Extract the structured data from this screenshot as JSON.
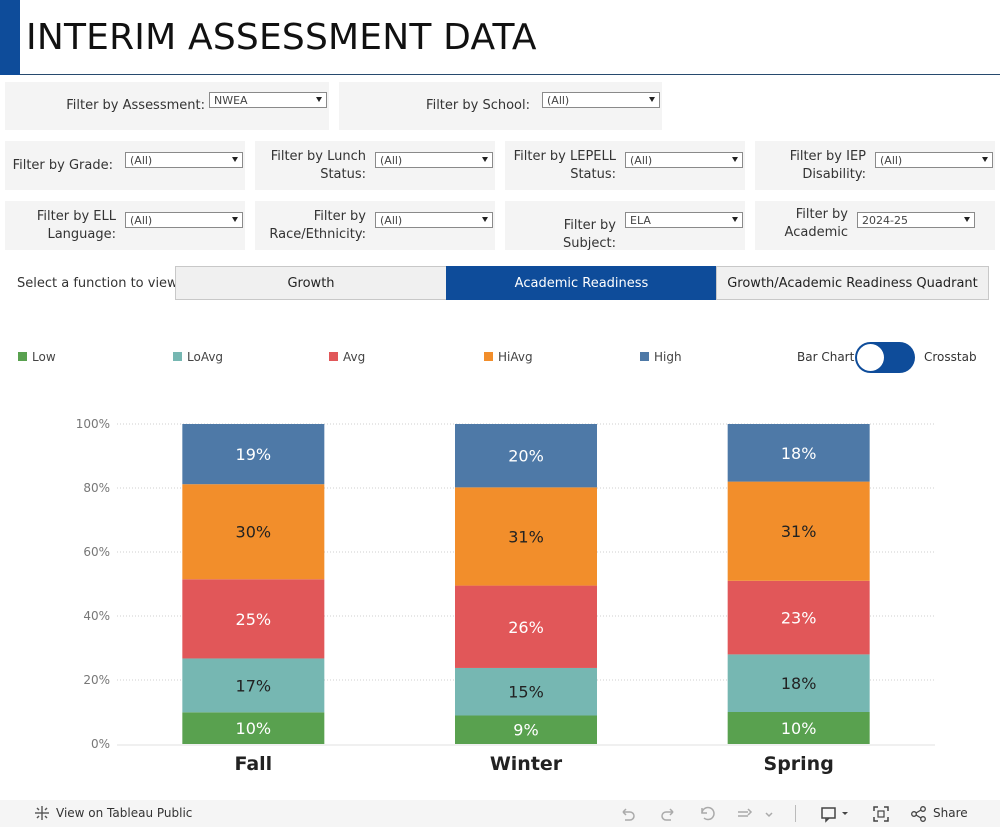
{
  "header": {
    "title": "INTERIM ASSESSMENT DATA"
  },
  "filters": {
    "assessment": {
      "label": "Filter by Assessment:",
      "value": "NWEA"
    },
    "school": {
      "label": "Filter by School:",
      "value": "(All)"
    },
    "grade": {
      "label": "Filter by Grade:",
      "value": "(All)"
    },
    "lunch": {
      "label_line1": "Filter by Lunch",
      "label_line2": "Status:",
      "value": "(All)"
    },
    "lepell": {
      "label_line1": "Filter by LEPELL",
      "label_line2": "Status:",
      "value": "(All)"
    },
    "iep": {
      "label_line1": "Filter by IEP",
      "label_line2": "Disability:",
      "value": "(All)"
    },
    "ell": {
      "label_line1": "Filter by ELL",
      "label_line2": "Language:",
      "value": "(All)"
    },
    "race": {
      "label_line1": "Filter by",
      "label_line2": "Race/Ethnicity:",
      "value": "(All)"
    },
    "subject": {
      "label": "Filter by Subject:",
      "value": "ELA"
    },
    "academic": {
      "label_line1": "Filter by",
      "label_line2": "Academic",
      "value": "2024-25"
    }
  },
  "function_select": {
    "label": "Select a function to view:",
    "tabs": [
      "Growth",
      "Academic Readiness",
      "Growth/Academic Readiness Quadrant"
    ],
    "active": "Academic Readiness"
  },
  "legend": [
    {
      "label": "Low",
      "color": "#59a14f"
    },
    {
      "label": "LoAvg",
      "color": "#76b7b2"
    },
    {
      "label": "Avg",
      "color": "#e15759"
    },
    {
      "label": "HiAvg",
      "color": "#f28e2b"
    },
    {
      "label": "High",
      "color": "#4e79a7"
    }
  ],
  "view_toggle": {
    "left": "Bar Chart",
    "right": "Crosstab",
    "selected": "Bar Chart"
  },
  "chart_data": {
    "type": "bar",
    "stacked": true,
    "categories": [
      "Fall",
      "Winter",
      "Spring"
    ],
    "series": [
      {
        "name": "Low",
        "color": "#59a14f",
        "values": [
          10,
          9,
          10
        ],
        "labels": [
          "10%",
          "9%",
          "10%"
        ]
      },
      {
        "name": "LoAvg",
        "color": "#76b7b2",
        "values": [
          17,
          15,
          18
        ],
        "labels": [
          "17%",
          "15%",
          "18%"
        ]
      },
      {
        "name": "Avg",
        "color": "#e15759",
        "values": [
          25,
          26,
          23
        ],
        "labels": [
          "25%",
          "26%",
          "23%"
        ]
      },
      {
        "name": "HiAvg",
        "color": "#f28e2b",
        "values": [
          30,
          31,
          31
        ],
        "labels": [
          "30%",
          "31%",
          "31%"
        ]
      },
      {
        "name": "High",
        "color": "#4e79a7",
        "values": [
          19,
          20,
          18
        ],
        "labels": [
          "19%",
          "20%",
          "18%"
        ]
      }
    ],
    "yticks": [
      "0%",
      "20%",
      "40%",
      "60%",
      "80%",
      "100%"
    ],
    "ylim": [
      0,
      100
    ],
    "grid": true,
    "legend": "top"
  },
  "footer": {
    "link_text": "View on Tableau Public",
    "share_label": "Share"
  }
}
